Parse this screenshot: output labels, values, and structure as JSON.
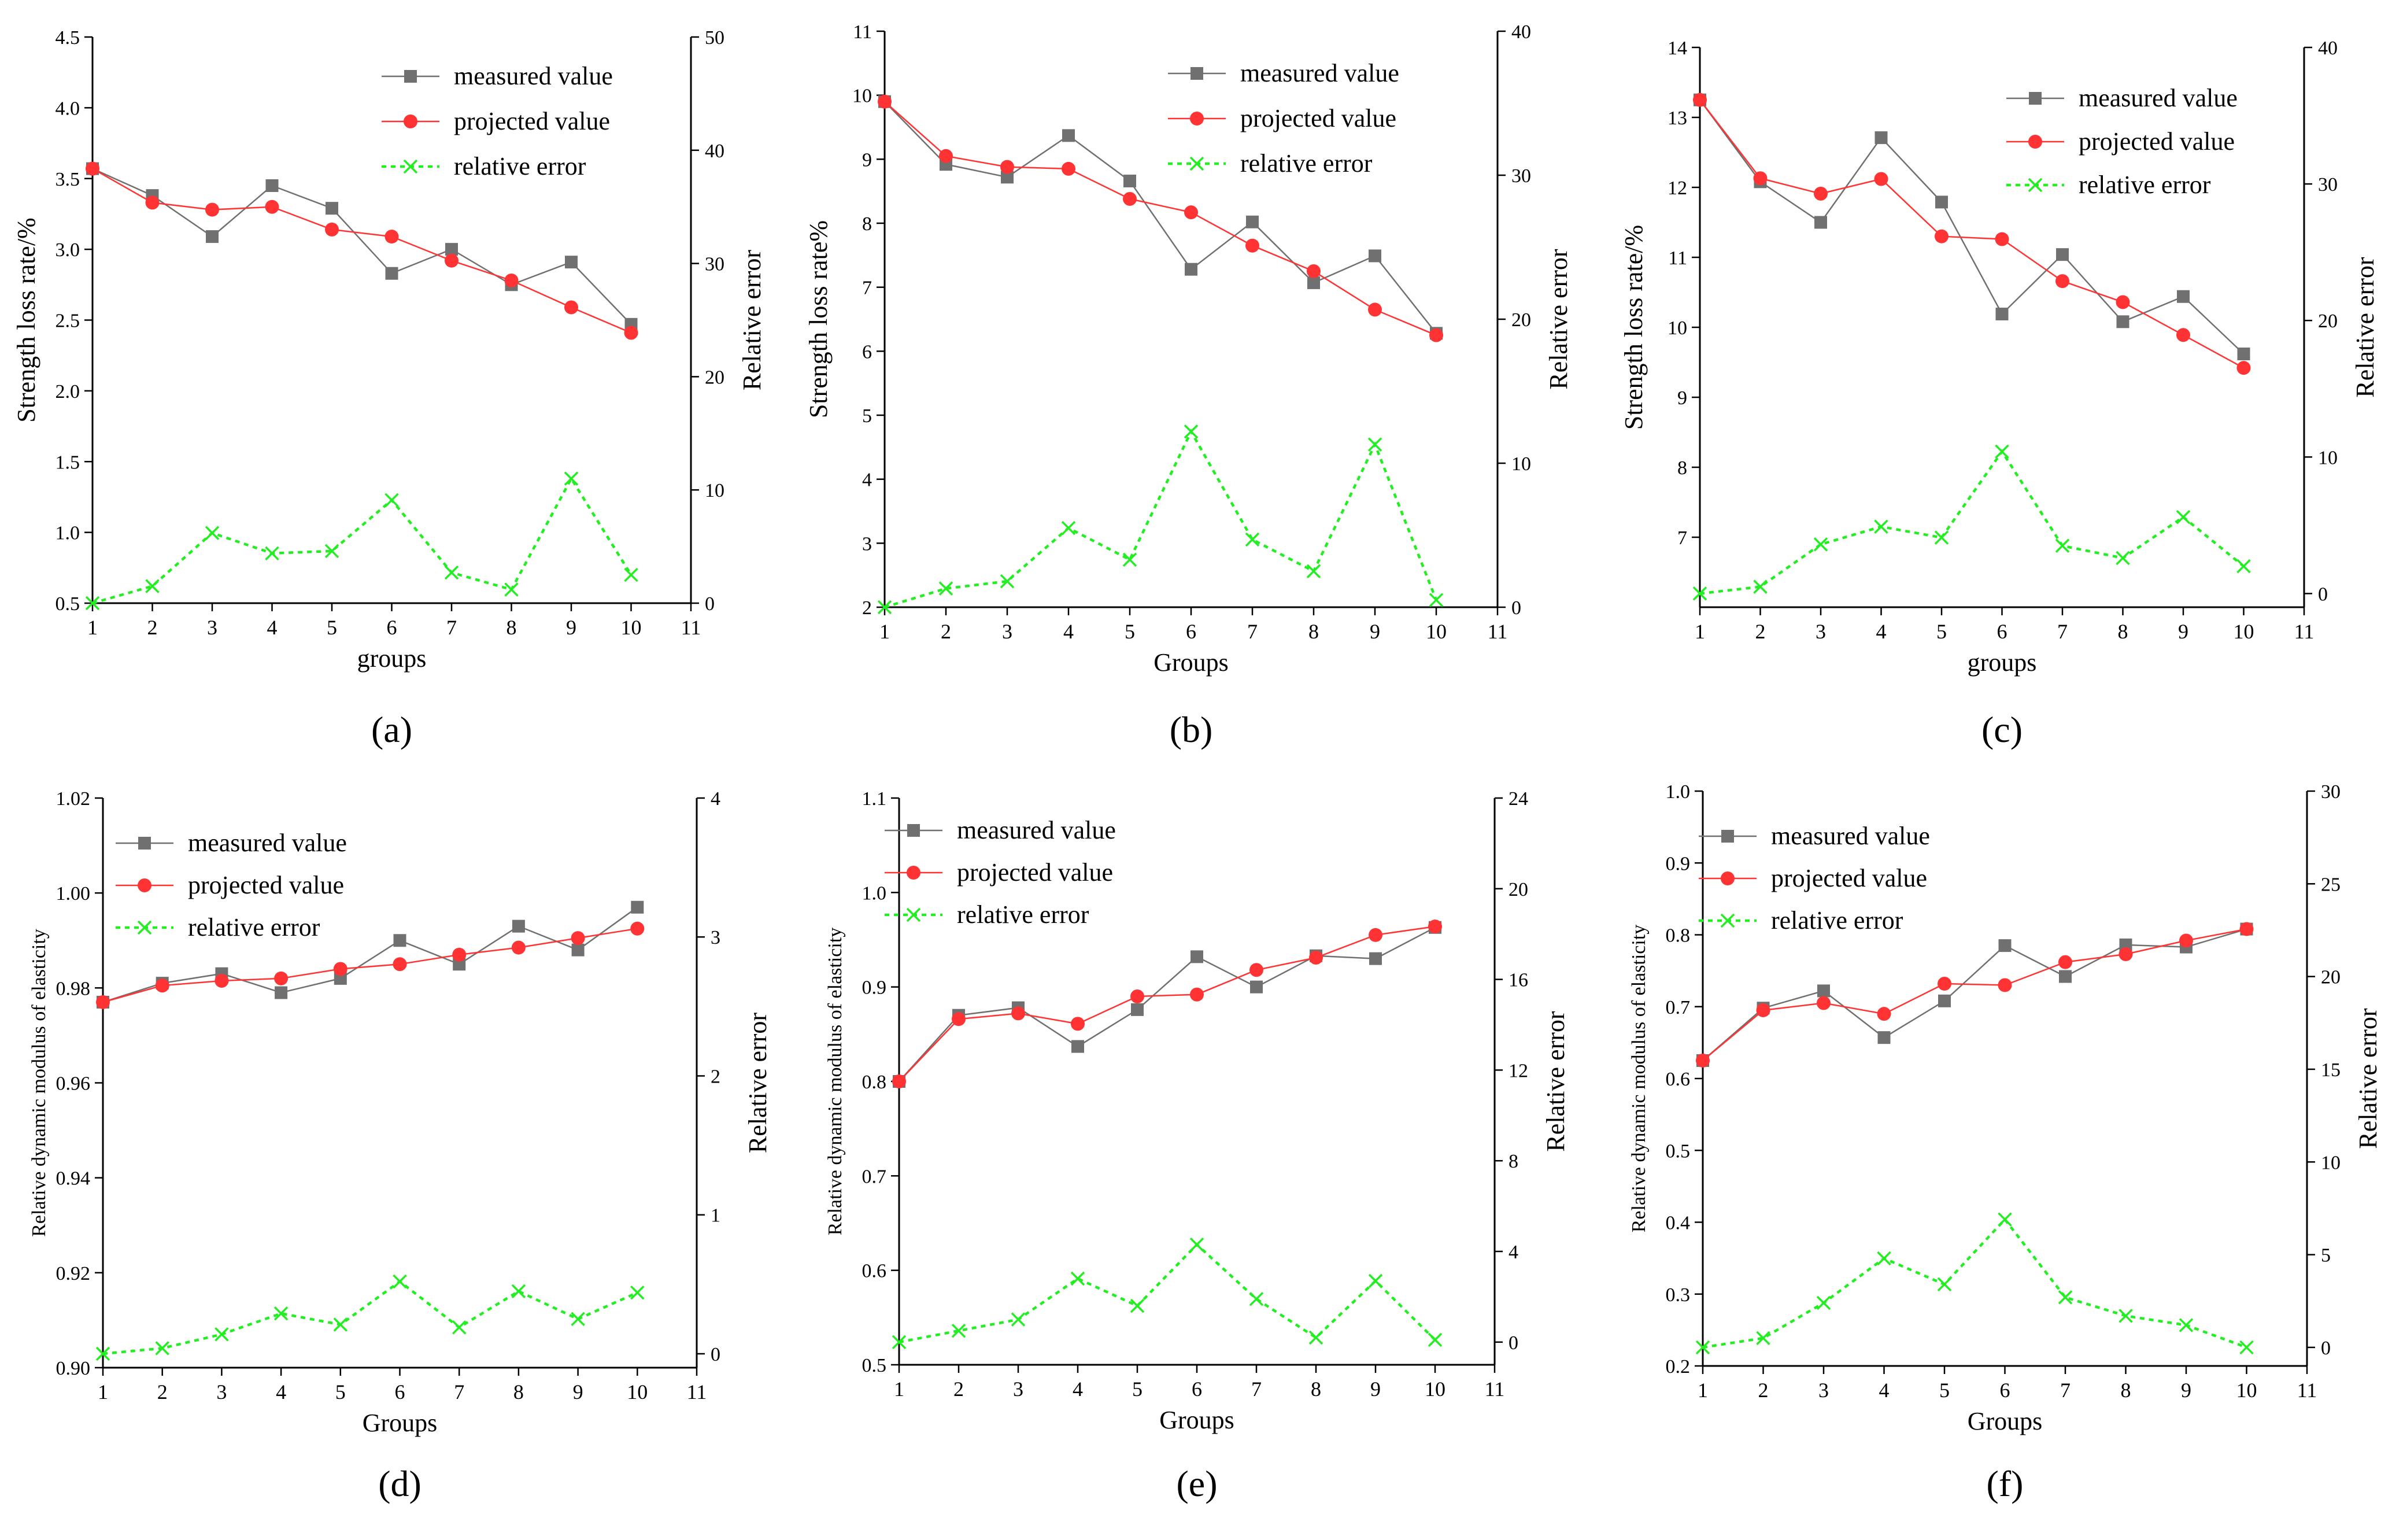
{
  "figure": {
    "colors": {
      "measured": "#707070",
      "projected": "#ff3333",
      "error": "#22ee22",
      "axis": "#000000"
    },
    "legend_labels": {
      "measured": "measured value",
      "projected": "projected value",
      "error": "relative error"
    }
  },
  "chart_data": [
    {
      "type": "line",
      "panel_label": "(a)",
      "xlabel": "groups",
      "ylabel": "Strength loss rate/%",
      "y2label": "Relative error",
      "xlim": [
        1,
        11
      ],
      "xticks": [
        "1",
        "2",
        "3",
        "4",
        "5",
        "6",
        "7",
        "8",
        "9",
        "10",
        "11"
      ],
      "ylim": [
        0.5,
        4.5
      ],
      "yticks": [
        "0.5",
        "1.0",
        "1.5",
        "2.0",
        "2.5",
        "3.0",
        "3.5",
        "4.0",
        "4.5"
      ],
      "y2lim": [
        0,
        50
      ],
      "y2ticks": [
        "0",
        "10",
        "20",
        "30",
        "40",
        "50"
      ],
      "x": [
        1,
        2,
        3,
        4,
        5,
        6,
        7,
        8,
        9,
        10
      ],
      "series": [
        {
          "name": "measured value",
          "axis": "left",
          "values": [
            3.57,
            3.38,
            3.09,
            3.45,
            3.29,
            2.83,
            3.0,
            2.75,
            2.91,
            2.47
          ]
        },
        {
          "name": "projected value",
          "axis": "left",
          "values": [
            3.57,
            3.33,
            3.28,
            3.3,
            3.14,
            3.09,
            2.92,
            2.78,
            2.59,
            2.41
          ]
        },
        {
          "name": "relative error",
          "axis": "right",
          "values": [
            0,
            1.5,
            6.2,
            4.4,
            4.6,
            9.1,
            2.7,
            1.2,
            11.0,
            2.5
          ]
        }
      ]
    },
    {
      "type": "line",
      "panel_label": "(b)",
      "xlabel": "Groups",
      "ylabel": "Strength loss rate%",
      "y2label": "Relative error",
      "xlim": [
        1,
        11
      ],
      "xticks": [
        "1",
        "2",
        "3",
        "4",
        "5",
        "6",
        "7",
        "8",
        "9",
        "10",
        "11"
      ],
      "ylim": [
        2,
        11
      ],
      "yticks": [
        "2",
        "3",
        "4",
        "5",
        "6",
        "7",
        "8",
        "9",
        "10",
        "11"
      ],
      "y2lim": [
        0,
        40
      ],
      "y2ticks": [
        "0",
        "10",
        "20",
        "30",
        "40"
      ],
      "x": [
        1,
        2,
        3,
        4,
        5,
        6,
        7,
        8,
        9,
        10
      ],
      "series": [
        {
          "name": "measured value",
          "axis": "left",
          "values": [
            9.9,
            8.92,
            8.72,
            9.37,
            8.66,
            7.28,
            8.02,
            7.07,
            7.49,
            6.28
          ]
        },
        {
          "name": "projected value",
          "axis": "left",
          "values": [
            9.9,
            9.05,
            8.88,
            8.85,
            8.38,
            8.17,
            7.65,
            7.25,
            6.65,
            6.25
          ]
        },
        {
          "name": "relative error",
          "axis": "right",
          "values": [
            0,
            1.3,
            1.8,
            5.5,
            3.3,
            12.2,
            4.7,
            2.5,
            11.3,
            0.5
          ]
        }
      ]
    },
    {
      "type": "line",
      "panel_label": "(c)",
      "xlabel": "groups",
      "ylabel": "Strength loss rate/%",
      "y2label": "Relative error",
      "xlim": [
        1,
        11
      ],
      "xticks": [
        "1",
        "2",
        "3",
        "4",
        "5",
        "6",
        "7",
        "8",
        "9",
        "10",
        "11"
      ],
      "ylim": [
        6,
        14
      ],
      "yticks": [
        "7",
        "8",
        "9",
        "10",
        "11",
        "12",
        "13",
        "14"
      ],
      "y2lim": [
        -1,
        40
      ],
      "y2ticks": [
        "0",
        "10",
        "20",
        "30",
        "40"
      ],
      "x": [
        1,
        2,
        3,
        4,
        5,
        6,
        7,
        8,
        9,
        10
      ],
      "series": [
        {
          "name": "measured value",
          "axis": "left",
          "values": [
            13.25,
            12.08,
            11.5,
            12.71,
            11.79,
            10.19,
            11.04,
            10.08,
            10.44,
            9.62
          ]
        },
        {
          "name": "projected value",
          "axis": "left",
          "values": [
            13.25,
            12.13,
            11.91,
            12.12,
            11.3,
            11.26,
            10.66,
            10.36,
            9.89,
            9.42
          ]
        },
        {
          "name": "relative error",
          "axis": "right",
          "values": [
            0,
            0.5,
            3.6,
            4.9,
            4.1,
            10.4,
            3.5,
            2.6,
            5.6,
            2.0
          ]
        }
      ]
    },
    {
      "type": "line",
      "panel_label": "(d)",
      "xlabel": "Groups",
      "ylabel": "Relative dynamic modulus of elasticity",
      "y2label": "Relative error",
      "xlim": [
        1,
        11
      ],
      "xticks": [
        "1",
        "2",
        "3",
        "4",
        "5",
        "6",
        "7",
        "8",
        "9",
        "10",
        "11"
      ],
      "ylim": [
        0.9,
        1.02
      ],
      "yticks": [
        "0.90",
        "0.92",
        "0.94",
        "0.96",
        "0.98",
        "1.00",
        "1.02"
      ],
      "y2lim": [
        -0.1,
        4
      ],
      "y2ticks": [
        "0",
        "1",
        "2",
        "3",
        "4"
      ],
      "x": [
        1,
        2,
        3,
        4,
        5,
        6,
        7,
        8,
        9,
        10
      ],
      "series": [
        {
          "name": "measured value",
          "axis": "left",
          "values": [
            0.977,
            0.981,
            0.983,
            0.979,
            0.982,
            0.99,
            0.985,
            0.993,
            0.988,
            0.997
          ]
        },
        {
          "name": "projected value",
          "axis": "left",
          "values": [
            0.977,
            0.9805,
            0.9815,
            0.982,
            0.984,
            0.985,
            0.987,
            0.9885,
            0.9905,
            0.9925
          ]
        },
        {
          "name": "relative error",
          "axis": "right",
          "values": [
            0,
            0.04,
            0.14,
            0.29,
            0.21,
            0.52,
            0.19,
            0.45,
            0.25,
            0.44
          ]
        }
      ]
    },
    {
      "type": "line",
      "panel_label": "(e)",
      "xlabel": "Groups",
      "ylabel": "Relative dynamic modulus of elasticity",
      "y2label": "Relative error",
      "xlim": [
        1,
        11
      ],
      "xticks": [
        "1",
        "2",
        "3",
        "4",
        "5",
        "6",
        "7",
        "8",
        "9",
        "10",
        "11"
      ],
      "ylim": [
        0.5,
        1.1
      ],
      "yticks": [
        "0.5",
        "0.6",
        "0.7",
        "0.8",
        "0.9",
        "1.0",
        "1.1"
      ],
      "y2lim": [
        -1,
        24
      ],
      "y2ticks": [
        "0",
        "4",
        "8",
        "12",
        "16",
        "20",
        "24"
      ],
      "x": [
        1,
        2,
        3,
        4,
        5,
        6,
        7,
        8,
        9,
        10
      ],
      "series": [
        {
          "name": "measured value",
          "axis": "left",
          "values": [
            0.8,
            0.87,
            0.878,
            0.837,
            0.876,
            0.932,
            0.9,
            0.933,
            0.93,
            0.963
          ]
        },
        {
          "name": "projected value",
          "axis": "left",
          "values": [
            0.8,
            0.866,
            0.872,
            0.861,
            0.89,
            0.892,
            0.918,
            0.931,
            0.955,
            0.964
          ]
        },
        {
          "name": "relative error",
          "axis": "right",
          "values": [
            0,
            0.5,
            1.0,
            2.8,
            1.6,
            4.3,
            1.9,
            0.2,
            2.7,
            0.1
          ]
        }
      ]
    },
    {
      "type": "line",
      "panel_label": "(f)",
      "xlabel": "Groups",
      "ylabel": "Relative dynamic modulus of elasticity",
      "y2label": "Relative error",
      "xlim": [
        1,
        11
      ],
      "xticks": [
        "1",
        "2",
        "3",
        "4",
        "5",
        "6",
        "7",
        "8",
        "9",
        "10",
        "11"
      ],
      "ylim": [
        0.2,
        1.0
      ],
      "yticks": [
        "0.2",
        "0.3",
        "0.4",
        "0.5",
        "0.6",
        "0.7",
        "0.8",
        "0.9",
        "1.0"
      ],
      "y2lim": [
        -1,
        30
      ],
      "y2ticks": [
        "0",
        "5",
        "10",
        "15",
        "20",
        "25",
        "30"
      ],
      "x": [
        1,
        2,
        3,
        4,
        5,
        6,
        7,
        8,
        9,
        10
      ],
      "series": [
        {
          "name": "measured value",
          "axis": "left",
          "values": [
            0.625,
            0.698,
            0.722,
            0.657,
            0.708,
            0.785,
            0.742,
            0.786,
            0.783,
            0.808
          ]
        },
        {
          "name": "projected value",
          "axis": "left",
          "values": [
            0.625,
            0.695,
            0.705,
            0.69,
            0.732,
            0.73,
            0.762,
            0.773,
            0.792,
            0.808
          ]
        },
        {
          "name": "relative error",
          "axis": "right",
          "values": [
            0,
            0.5,
            2.4,
            4.8,
            3.4,
            6.9,
            2.7,
            1.7,
            1.2,
            0
          ]
        }
      ]
    }
  ]
}
